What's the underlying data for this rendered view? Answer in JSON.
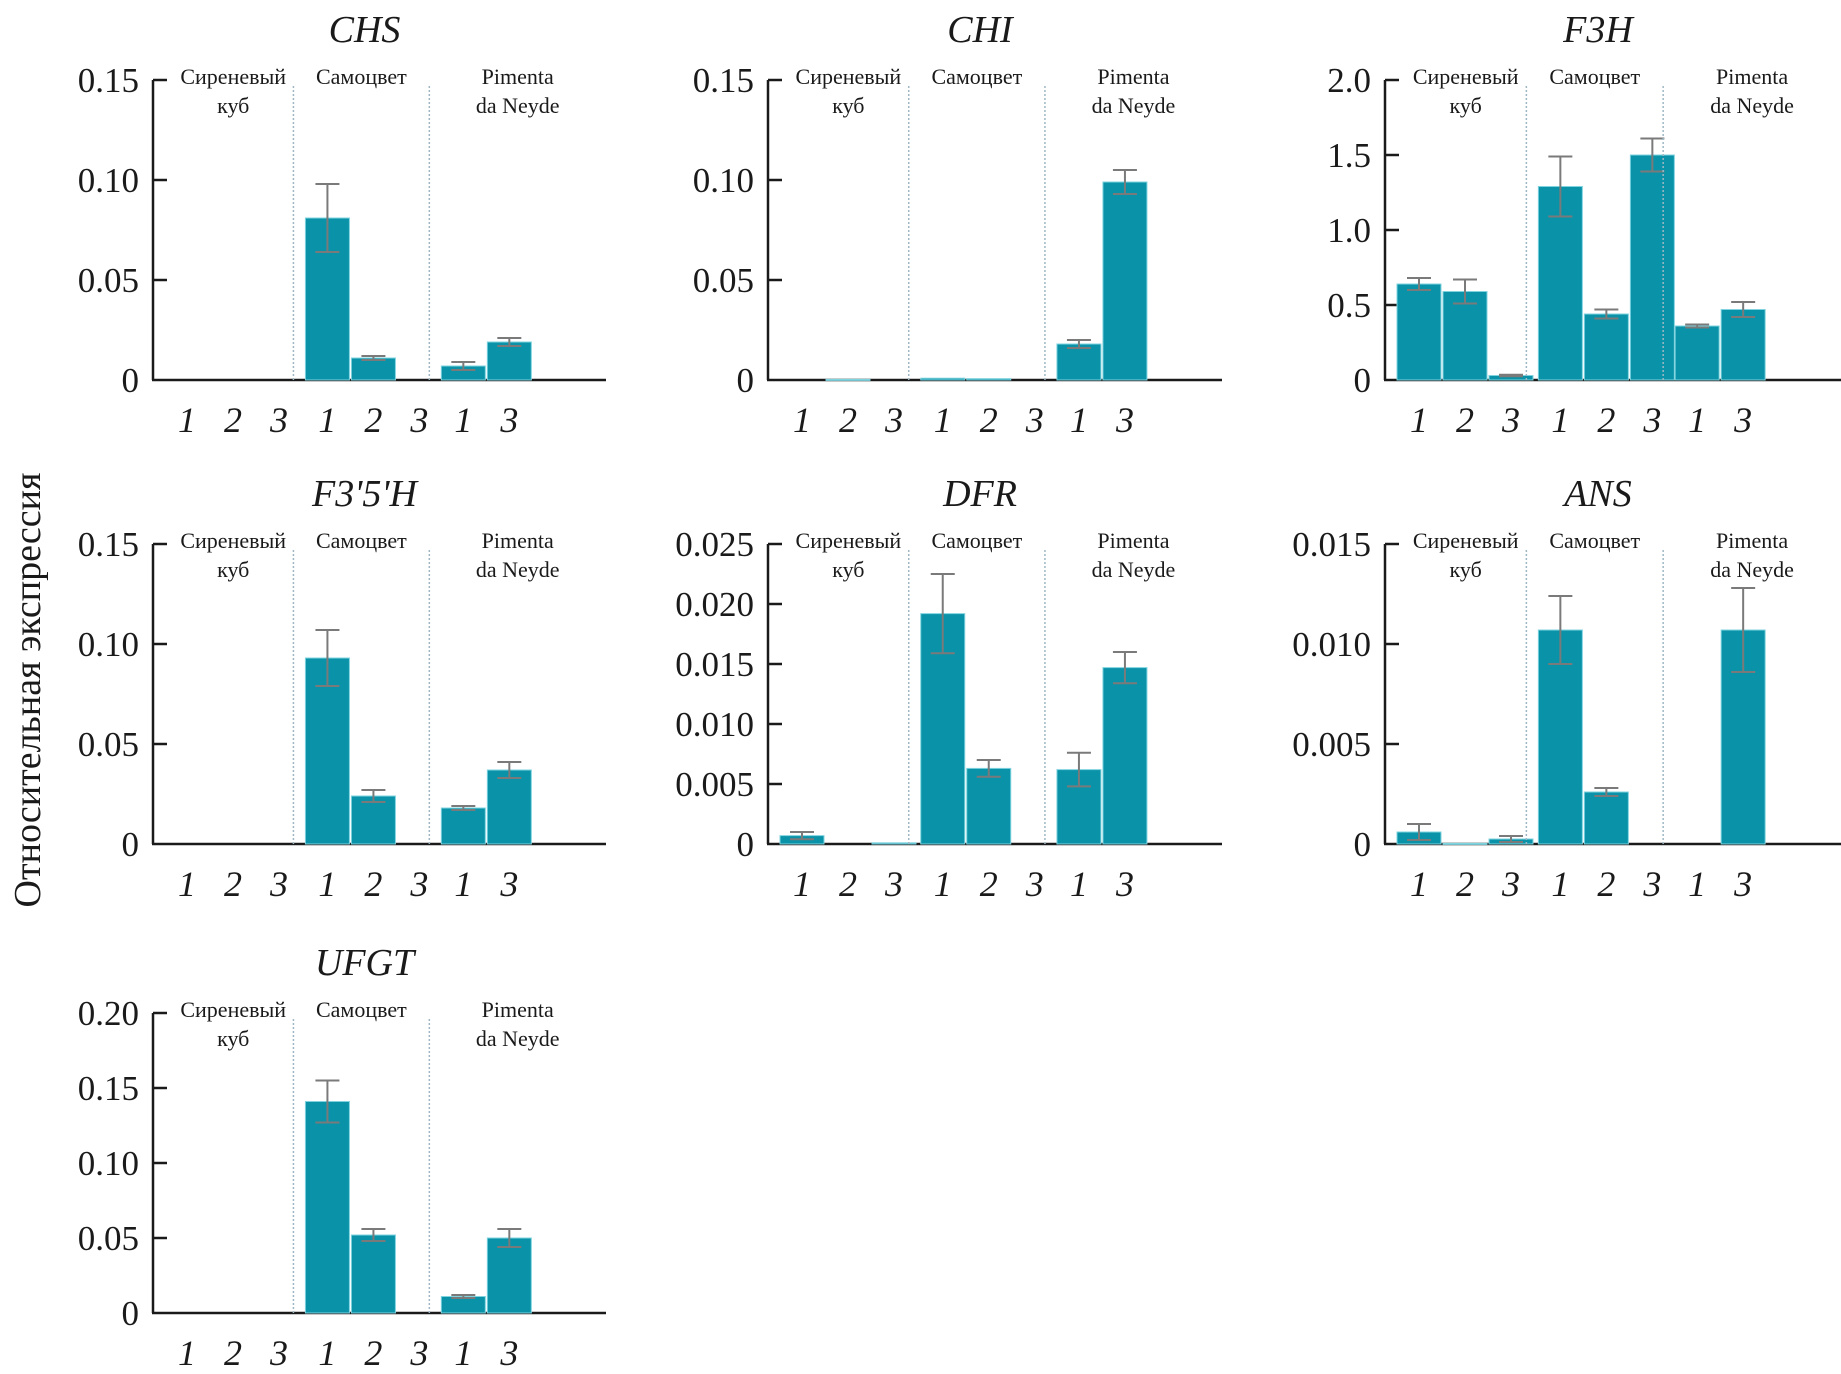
{
  "figure": {
    "y_axis_label": "Относительная экспрессия"
  },
  "chart_data": [
    {
      "type": "bar",
      "title": "CHS",
      "ylabel": "Относительная экспрессия",
      "ylim": [
        0,
        0.15
      ],
      "yticks": [
        "0",
        "0.05",
        "0.10",
        "0.15"
      ],
      "ytick_values": [
        0,
        0.05,
        0.1,
        0.15
      ],
      "groups": [
        {
          "label_lines": [
            "Сиреневый",
            "куб"
          ],
          "categories": [
            "1",
            "2",
            "3"
          ],
          "values": [
            0,
            0,
            0
          ],
          "errors": [
            0,
            0,
            0
          ]
        },
        {
          "label_lines": [
            "Самоцвет"
          ],
          "categories": [
            "1",
            "2",
            "3"
          ],
          "values": [
            0.081,
            0.011,
            0
          ],
          "errors": [
            0.017,
            0.001,
            0
          ]
        },
        {
          "label_lines": [
            "Pimenta",
            "da Neyde"
          ],
          "categories": [
            "1",
            "3"
          ],
          "values": [
            0.007,
            0.019
          ],
          "errors": [
            0.002,
            0.002
          ]
        }
      ]
    },
    {
      "type": "bar",
      "title": "CHI",
      "ylabel": "Относительная экспрессия",
      "ylim": [
        0,
        0.15
      ],
      "yticks": [
        "0",
        "0.05",
        "0.10",
        "0.15"
      ],
      "ytick_values": [
        0,
        0.05,
        0.1,
        0.15
      ],
      "groups": [
        {
          "label_lines": [
            "Сиреневый",
            "куб"
          ],
          "categories": [
            "1",
            "2",
            "3"
          ],
          "values": [
            0,
            0.0003,
            0
          ],
          "errors": [
            0,
            0,
            0
          ]
        },
        {
          "label_lines": [
            "Самоцвет"
          ],
          "categories": [
            "1",
            "2",
            "3"
          ],
          "values": [
            0.0009,
            0.0007,
            0
          ],
          "errors": [
            0,
            0,
            0
          ]
        },
        {
          "label_lines": [
            "Pimenta",
            "da Neyde"
          ],
          "categories": [
            "1",
            "3"
          ],
          "values": [
            0.018,
            0.099
          ],
          "errors": [
            0.002,
            0.006
          ]
        }
      ]
    },
    {
      "type": "bar",
      "title": "F3H",
      "ylabel": "Относительная экспрессия",
      "ylim": [
        0,
        2.0
      ],
      "yticks": [
        "0",
        "0.5",
        "1.0",
        "1.5",
        "2.0"
      ],
      "ytick_values": [
        0,
        0.5,
        1.0,
        1.5,
        2.0
      ],
      "groups": [
        {
          "label_lines": [
            "Сиреневый",
            "куб"
          ],
          "categories": [
            "1",
            "2",
            "3"
          ],
          "values": [
            0.64,
            0.59,
            0.03
          ],
          "errors": [
            0.04,
            0.08,
            0.005
          ]
        },
        {
          "label_lines": [
            "Самоцвет"
          ],
          "categories": [
            "1",
            "2",
            "3"
          ],
          "values": [
            1.29,
            0.44,
            1.5
          ],
          "errors": [
            0.2,
            0.03,
            0.11
          ]
        },
        {
          "label_lines": [
            "Pimenta",
            "da Neyde"
          ],
          "categories": [
            "1",
            "3"
          ],
          "values": [
            0.36,
            0.47
          ],
          "errors": [
            0.01,
            0.05
          ]
        }
      ]
    },
    {
      "type": "bar",
      "title": "F3'5'H",
      "ylabel": "Относительная экспрессия",
      "ylim": [
        0,
        0.15
      ],
      "yticks": [
        "0",
        "0.05",
        "0.10",
        "0.15"
      ],
      "ytick_values": [
        0,
        0.05,
        0.1,
        0.15
      ],
      "groups": [
        {
          "label_lines": [
            "Сиреневый",
            "куб"
          ],
          "categories": [
            "1",
            "2",
            "3"
          ],
          "values": [
            0,
            0,
            0
          ],
          "errors": [
            0,
            0,
            0
          ]
        },
        {
          "label_lines": [
            "Самоцвет"
          ],
          "categories": [
            "1",
            "2",
            "3"
          ],
          "values": [
            0.093,
            0.024,
            0
          ],
          "errors": [
            0.014,
            0.003,
            0
          ]
        },
        {
          "label_lines": [
            "Pimenta",
            "da Neyde"
          ],
          "categories": [
            "1",
            "3"
          ],
          "values": [
            0.018,
            0.037
          ],
          "errors": [
            0.001,
            0.004
          ]
        }
      ]
    },
    {
      "type": "bar",
      "title": "DFR",
      "ylabel": "Относительная экспрессия",
      "ylim": [
        0,
        0.025
      ],
      "yticks": [
        "0",
        "0.005",
        "0.010",
        "0.015",
        "0.020",
        "0.025"
      ],
      "ytick_values": [
        0,
        0.005,
        0.01,
        0.015,
        0.02,
        0.025
      ],
      "groups": [
        {
          "label_lines": [
            "Сиреневый",
            "куб"
          ],
          "categories": [
            "1",
            "2",
            "3"
          ],
          "values": [
            0.0007,
            0,
            0.0001
          ],
          "errors": [
            0.0003,
            0,
            0
          ]
        },
        {
          "label_lines": [
            "Самоцвет"
          ],
          "categories": [
            "1",
            "2",
            "3"
          ],
          "values": [
            0.0192,
            0.0063,
            0
          ],
          "errors": [
            0.0033,
            0.0007,
            0
          ]
        },
        {
          "label_lines": [
            "Pimenta",
            "da Neyde"
          ],
          "categories": [
            "1",
            "3"
          ],
          "values": [
            0.0062,
            0.0147
          ],
          "errors": [
            0.0014,
            0.0013
          ]
        }
      ]
    },
    {
      "type": "bar",
      "title": "ANS",
      "ylabel": "Относительная экспрессия",
      "ylim": [
        0,
        0.015
      ],
      "yticks": [
        "0",
        "0.005",
        "0.010",
        "0.015"
      ],
      "ytick_values": [
        0,
        0.005,
        0.01,
        0.015
      ],
      "groups": [
        {
          "label_lines": [
            "Сиреневый",
            "куб"
          ],
          "categories": [
            "1",
            "2",
            "3"
          ],
          "values": [
            0.0006,
            3e-05,
            0.00025
          ],
          "errors": [
            0.0004,
            0,
            0.00015
          ]
        },
        {
          "label_lines": [
            "Самоцвет"
          ],
          "categories": [
            "1",
            "2",
            "3"
          ],
          "values": [
            0.0107,
            0.0026,
            0
          ],
          "errors": [
            0.0017,
            0.0002,
            0
          ]
        },
        {
          "label_lines": [
            "Pimenta",
            "da Neyde"
          ],
          "categories": [
            "1",
            "3"
          ],
          "values": [
            0,
            0.0107
          ],
          "errors": [
            0,
            0.0021
          ]
        }
      ]
    },
    {
      "type": "bar",
      "title": "UFGT",
      "ylabel": "Относительная экспрессия",
      "ylim": [
        0,
        0.2
      ],
      "yticks": [
        "0",
        "0.05",
        "0.10",
        "0.15",
        "0.20"
      ],
      "ytick_values": [
        0,
        0.05,
        0.1,
        0.15,
        0.2
      ],
      "groups": [
        {
          "label_lines": [
            "Сиреневый",
            "куб"
          ],
          "categories": [
            "1",
            "2",
            "3"
          ],
          "values": [
            0,
            0,
            0
          ],
          "errors": [
            0,
            0,
            0
          ]
        },
        {
          "label_lines": [
            "Самоцвет"
          ],
          "categories": [
            "1",
            "2",
            "3"
          ],
          "values": [
            0.141,
            0.052,
            0
          ],
          "errors": [
            0.014,
            0.004,
            0
          ]
        },
        {
          "label_lines": [
            "Pimenta",
            "da Neyde"
          ],
          "categories": [
            "1",
            "3"
          ],
          "values": [
            0.011,
            0.05
          ],
          "errors": [
            0.001,
            0.006
          ]
        }
      ]
    }
  ],
  "colors": {
    "bar": "#0a93a8",
    "bar_edge": "#7fd3df",
    "error_bar": "#7a7a7a",
    "axis": "#1a1a1a",
    "separator": "#9fb7c4"
  }
}
